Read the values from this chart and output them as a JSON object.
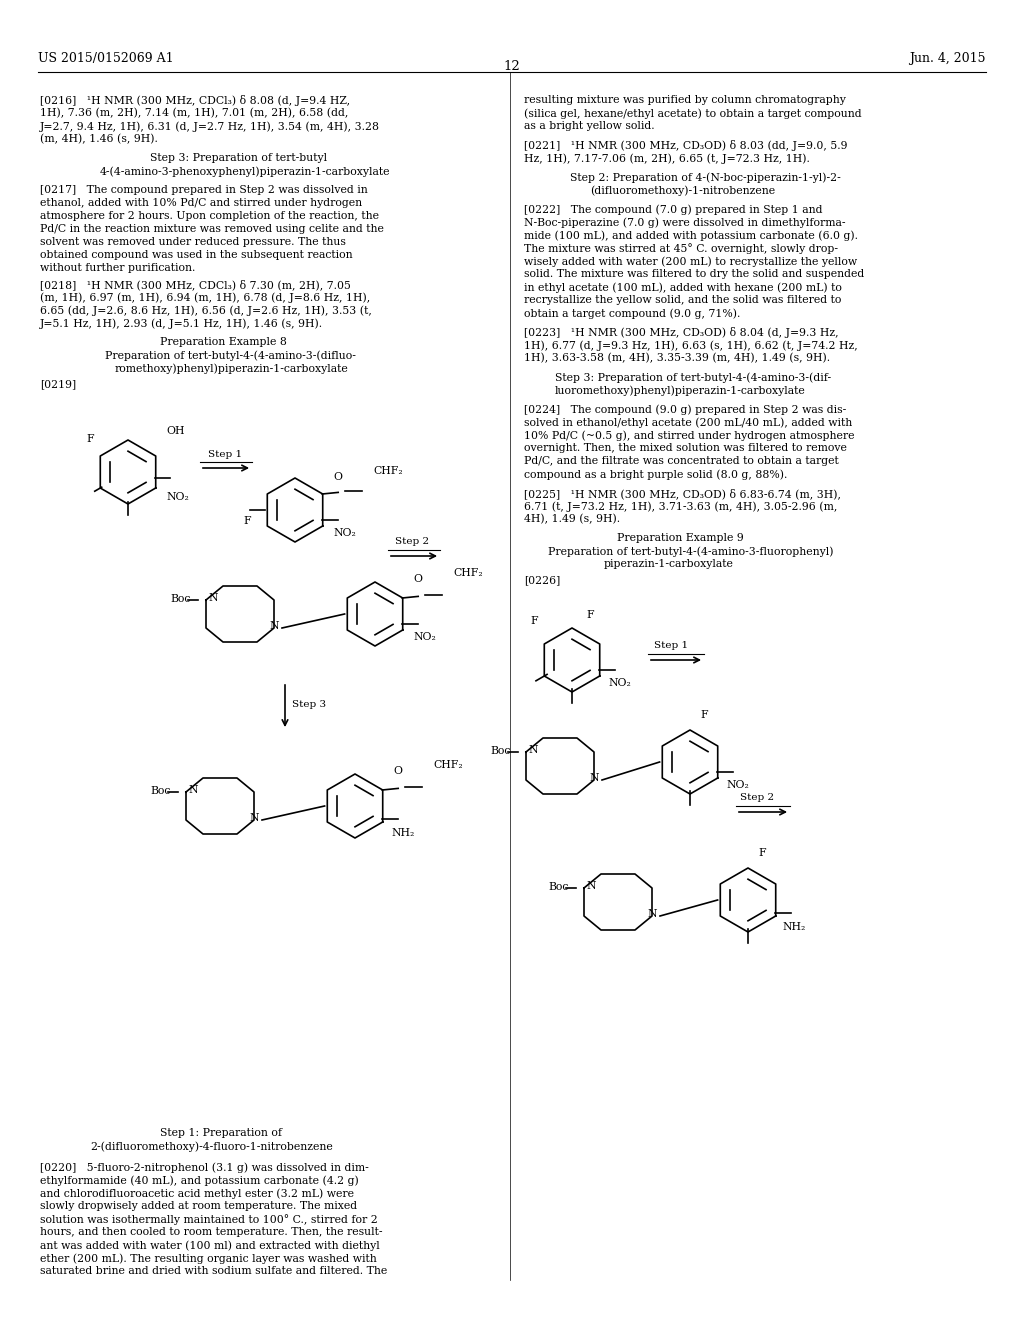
{
  "bg_color": "#ffffff",
  "header_left": "US 2015/0152069 A1",
  "header_right": "Jun. 4, 2015",
  "page_number": "12"
}
